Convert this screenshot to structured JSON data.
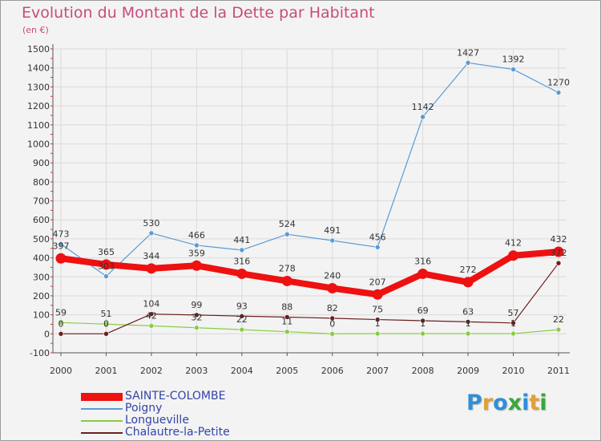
{
  "title": "Evolution du Montant de la Dette par Habitant",
  "subtitle": "(en €)",
  "logo": {
    "text": "Proxiti",
    "letter_colors": [
      "#2f8fd8",
      "#e0a03a",
      "#2f8fd8",
      "#3aa83a",
      "#2f8fd8",
      "#e0a03a",
      "#3aa83a"
    ]
  },
  "chart_data": {
    "type": "line",
    "title": "Evolution du Montant de la Dette par Habitant",
    "ylabel": "(en €)",
    "x": [
      "2000",
      "2001",
      "2002",
      "2003",
      "2004",
      "2005",
      "2006",
      "2007",
      "2008",
      "2009",
      "2010",
      "2011"
    ],
    "ylim": [
      -100,
      1500
    ],
    "yticks": [
      -100,
      0,
      100,
      200,
      300,
      400,
      500,
      600,
      700,
      800,
      900,
      1000,
      1100,
      1200,
      1300,
      1400,
      1500
    ],
    "grid": true,
    "legend_position": "bottom-left",
    "series": [
      {
        "name": "SAINTE-COLOMBE",
        "color": "#ee1111",
        "values": [
          397,
          365,
          344,
          359,
          316,
          278,
          240,
          207,
          316,
          272,
          412,
          432
        ]
      },
      {
        "name": "Poigny",
        "color": "#5b9bd5",
        "values": [
          473,
          303,
          530,
          466,
          441,
          524,
          491,
          456,
          1142,
          1427,
          1392,
          1270
        ]
      },
      {
        "name": "Longueville",
        "color": "#88cc44",
        "values": [
          59,
          51,
          42,
          32,
          22,
          11,
          0,
          1,
          1,
          1,
          1,
          22
        ]
      },
      {
        "name": "Chalautre-la-Petite",
        "color": "#6b1f1f",
        "values": [
          0,
          0,
          104,
          99,
          93,
          88,
          82,
          75,
          69,
          63,
          57,
          372
        ]
      }
    ],
    "data_labels": [
      {
        "series": "SAINTE-COLOMBE",
        "labels": [
          "397",
          "365",
          "344",
          "359",
          "316",
          "278",
          "240",
          "207",
          "316",
          "272",
          "412",
          "432"
        ]
      },
      {
        "series": "Poigny",
        "labels": [
          "473",
          "303",
          "530",
          "466",
          "441",
          "524",
          "491",
          "456",
          "1142",
          "1427",
          "1392",
          "1270"
        ]
      },
      {
        "series": "Longueville",
        "labels": [
          "59",
          "51",
          "42",
          "32",
          "22",
          "11",
          "0",
          "1",
          "1",
          "1",
          "1",
          "22"
        ]
      },
      {
        "series": "Chalautre-la-Petite",
        "labels": [
          "0",
          "0",
          "104",
          "99",
          "93",
          "88",
          "82",
          "75",
          "69",
          "63",
          "57",
          "372"
        ]
      }
    ]
  }
}
